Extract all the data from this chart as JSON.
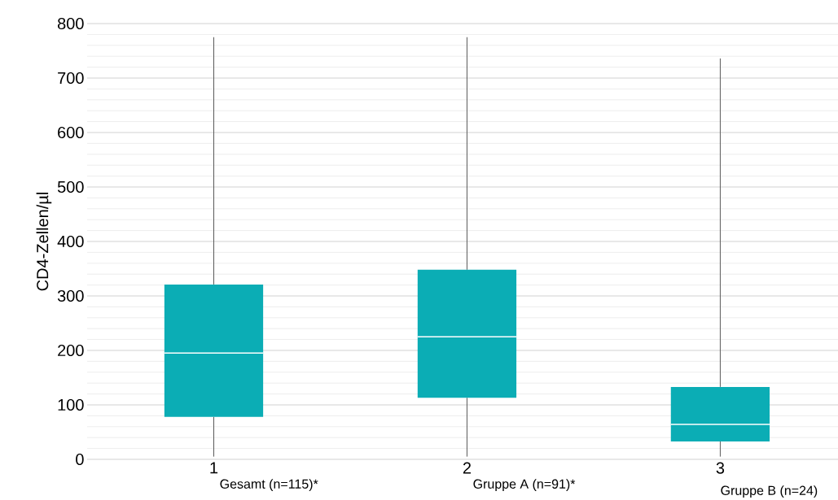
{
  "chart_data": {
    "type": "box",
    "ylabel": "CD4-Zellen/µl",
    "categories": [
      "1",
      "2",
      "3"
    ],
    "boxes": [
      {
        "low": 5,
        "q1": 78,
        "median": 195,
        "q3": 321,
        "high": 775
      },
      {
        "low": 5,
        "q1": 113,
        "median": 225,
        "q3": 348,
        "high": 775
      },
      {
        "low": 5,
        "q1": 33,
        "median": 64,
        "q3": 133,
        "high": 736
      }
    ],
    "color": "#0badb5",
    "ylim": [
      0,
      800
    ],
    "yticks": [
      0,
      100,
      200,
      300,
      400,
      500,
      600,
      700,
      800
    ],
    "grid": "y",
    "annotations": [
      "Gesamt (n=115)*",
      "Gruppe A (n=91)*",
      "Gruppe B (n=24)"
    ]
  }
}
